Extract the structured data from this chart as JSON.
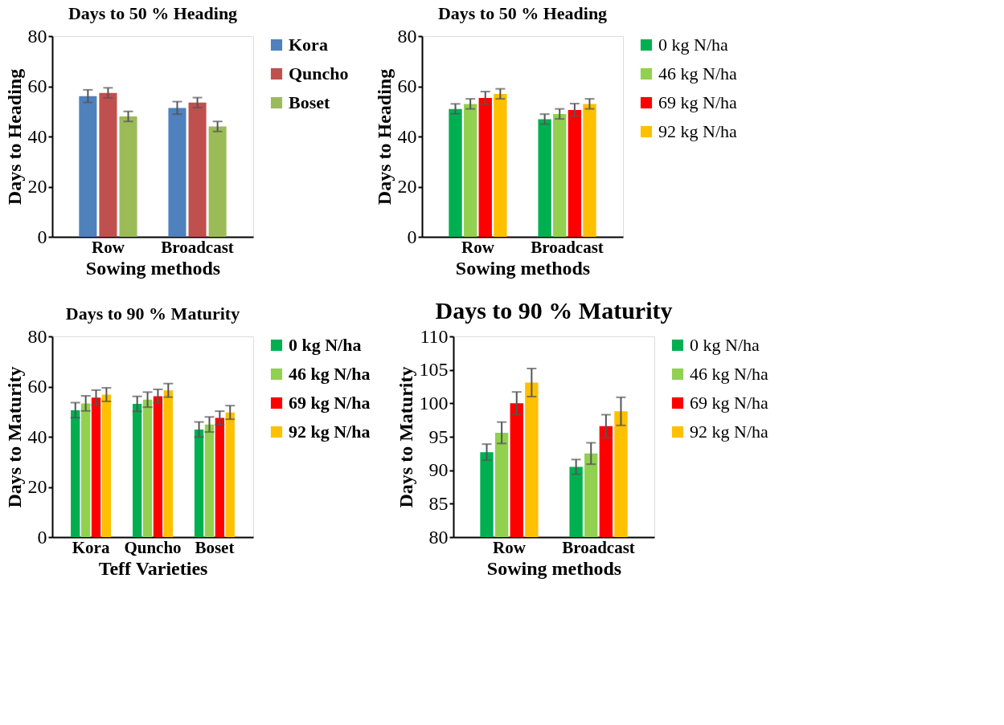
{
  "chart_data": [
    {
      "type": "bar",
      "title": "Days to 50 % Heading",
      "xlabel": "Sowing methods",
      "ylabel": "Days to Heading",
      "categories": [
        "Row",
        "Broadcast"
      ],
      "ylim": [
        0,
        80
      ],
      "yticks": [
        0,
        20,
        40,
        60,
        80
      ],
      "grid": false,
      "legend": "right",
      "series": [
        {
          "name": "Kora",
          "color": "#4f81bd",
          "values": [
            56.1,
            51.4
          ],
          "errors": [
            2.5,
            2.5
          ]
        },
        {
          "name": "Quncho",
          "color": "#c0504d",
          "values": [
            57.4,
            53.5
          ],
          "errors": [
            2,
            2
          ]
        },
        {
          "name": "Boset",
          "color": "#9bbb59",
          "values": [
            48,
            44
          ],
          "errors": [
            2,
            2
          ]
        }
      ]
    },
    {
      "type": "bar",
      "title": "Days to 50 % Heading",
      "xlabel": "Sowing methods",
      "ylabel": "Days to Heading",
      "categories": [
        "Row",
        "Broadcast"
      ],
      "ylim": [
        0,
        80
      ],
      "yticks": [
        0,
        20,
        40,
        60,
        80
      ],
      "grid": false,
      "legend": "right",
      "series": [
        {
          "name": "0 kg N/ha",
          "color": "#00b050",
          "values": [
            51,
            46.9
          ],
          "errors": [
            2,
            2
          ]
        },
        {
          "name": "46 kg N/ha",
          "color": "#92d050",
          "values": [
            53,
            49
          ],
          "errors": [
            2,
            2
          ]
        },
        {
          "name": "69 kg N/ha",
          "color": "#ff0000",
          "values": [
            55.4,
            50.6
          ],
          "errors": [
            2.5,
            2.5
          ]
        },
        {
          "name": "92 kg N/ha",
          "color": "#ffc000",
          "values": [
            57,
            53
          ],
          "errors": [
            2,
            2
          ]
        }
      ]
    },
    {
      "type": "bar",
      "title": "Days to 90 % Maturity",
      "xlabel": "Teff Varieties",
      "ylabel": "Days to Maturity",
      "categories": [
        "Kora",
        "Quncho",
        "Boset"
      ],
      "ylim": [
        0,
        80
      ],
      "yticks": [
        0,
        20,
        40,
        60,
        80
      ],
      "grid": false,
      "legend": "right",
      "series": [
        {
          "name": "0 kg N/ha",
          "color": "#00b050",
          "values": [
            50.6,
            53.1,
            42.9
          ],
          "errors": [
            3,
            3,
            3
          ]
        },
        {
          "name": "46 kg N/ha",
          "color": "#92d050",
          "values": [
            53.3,
            54.8,
            44.9
          ],
          "errors": [
            3,
            3,
            3
          ]
        },
        {
          "name": "69 kg N/ha",
          "color": "#ff0000",
          "values": [
            55.6,
            56.2,
            47.5
          ],
          "errors": [
            3,
            2.7,
            2.7
          ]
        },
        {
          "name": "92 kg N/ha",
          "color": "#ffc000",
          "values": [
            56.8,
            58.5,
            49.7
          ],
          "errors": [
            2.7,
            2.7,
            2.7
          ]
        }
      ]
    },
    {
      "type": "bar",
      "title": "Days to 90 % Maturity",
      "xlabel": "Sowing methods",
      "ylabel": "Days to Maturity",
      "categories": [
        "Row",
        "Broadcast"
      ],
      "ylim": [
        80,
        110
      ],
      "yticks": [
        80,
        85,
        90,
        95,
        100,
        105,
        110
      ],
      "grid": false,
      "legend": "right",
      "series": [
        {
          "name": "0 kg N/ha",
          "color": "#00b050",
          "values": [
            92.7,
            90.5
          ],
          "errors": [
            1.2,
            1.1
          ]
        },
        {
          "name": "46 kg N/ha",
          "color": "#92d050",
          "values": [
            95.6,
            92.5
          ],
          "errors": [
            1.6,
            1.6
          ]
        },
        {
          "name": "69 kg N/ha",
          "color": "#ff0000",
          "values": [
            100,
            96.6
          ],
          "errors": [
            1.7,
            1.7
          ]
        },
        {
          "name": "92 kg N/ha",
          "color": "#ffc000",
          "values": [
            103.1,
            98.8
          ],
          "errors": [
            2.1,
            2.1
          ]
        }
      ]
    }
  ]
}
